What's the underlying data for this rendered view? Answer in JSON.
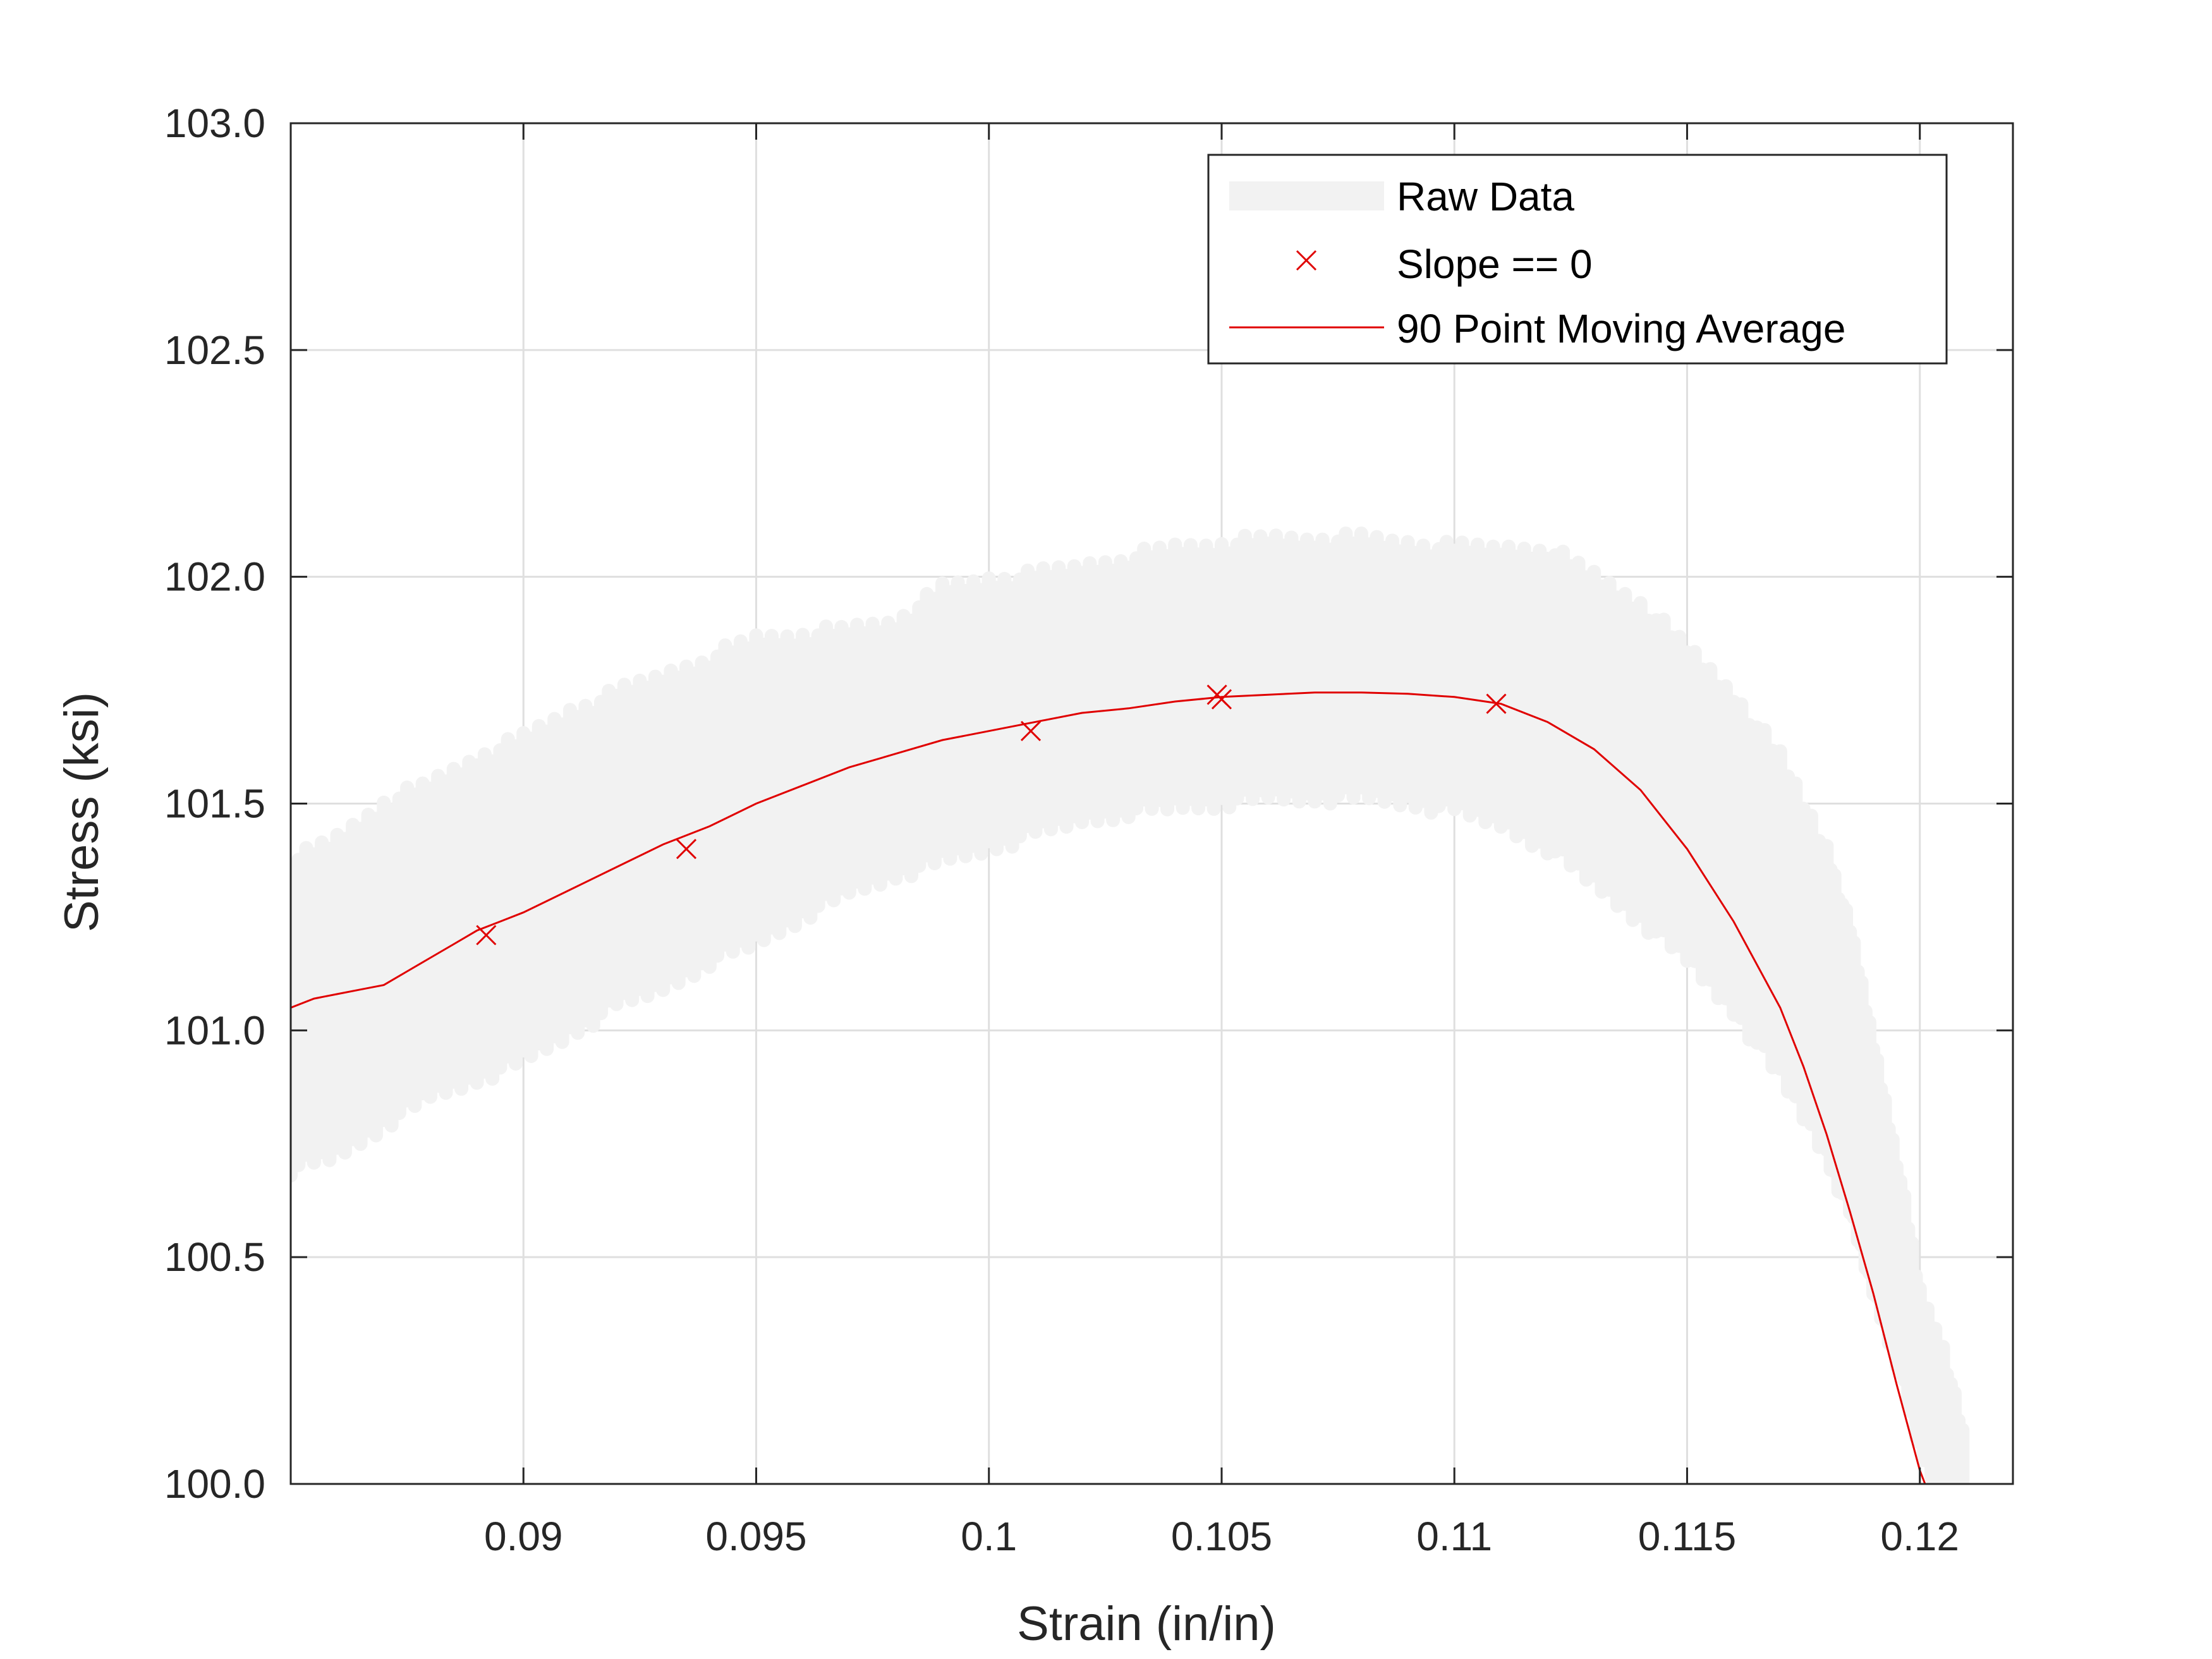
{
  "colors": {
    "raw": "#f2f2f2",
    "line": "#e00000",
    "markers": "#e00000",
    "axes": "#262626",
    "grid": "#dfdfdf"
  },
  "chart_data": {
    "type": "line",
    "xlabel": "Strain (in/in)",
    "ylabel": "Stress (ksi)",
    "xlim": [
      0.085,
      0.122
    ],
    "ylim": [
      100.0,
      103.0
    ],
    "grid": true,
    "legend_position": "top-right",
    "x_tick_labels": [
      "0.09",
      "0.095",
      "0.1",
      "0.105",
      "0.11",
      "0.115",
      "0.12"
    ],
    "y_tick_labels": [
      "100.0",
      "100.5",
      "101.0",
      "101.5",
      "102.0",
      "102.5",
      "103.0"
    ],
    "legend": [
      "Raw Data",
      "Slope == 0",
      "90 Point Moving Average"
    ],
    "series": [
      {
        "name": "Raw Data",
        "style": "thick light band",
        "x": [
          0.085,
          0.086,
          0.087,
          0.088,
          0.089,
          0.09,
          0.091,
          0.092,
          0.093,
          0.094,
          0.095,
          0.096,
          0.097,
          0.098,
          0.099,
          0.1,
          0.101,
          0.102,
          0.103,
          0.104,
          0.105,
          0.106,
          0.107,
          0.108,
          0.109,
          0.11,
          0.111,
          0.112,
          0.113,
          0.114,
          0.115,
          0.116,
          0.117,
          0.118,
          0.1185,
          0.119,
          0.1195,
          0.12,
          0.1205,
          0.121
        ],
        "y_low": [
          100.72,
          100.75,
          100.82,
          100.88,
          100.92,
          100.96,
          101.02,
          101.08,
          101.12,
          101.18,
          101.22,
          101.28,
          101.33,
          101.37,
          101.4,
          101.43,
          101.46,
          101.49,
          101.51,
          101.52,
          101.53,
          101.54,
          101.54,
          101.54,
          101.53,
          101.51,
          101.48,
          101.43,
          101.35,
          101.27,
          101.18,
          101.07,
          100.92,
          100.75,
          100.62,
          100.45,
          100.3,
          100.1,
          100.0,
          100.0
        ],
        "y_high": [
          101.35,
          101.4,
          101.48,
          101.52,
          101.58,
          101.62,
          101.68,
          101.72,
          101.76,
          101.8,
          101.84,
          101.85,
          101.86,
          101.88,
          101.95,
          101.97,
          101.98,
          102.0,
          102.02,
          102.04,
          102.05,
          102.06,
          102.06,
          102.06,
          102.05,
          102.04,
          102.04,
          102.04,
          101.98,
          101.92,
          101.82,
          101.72,
          101.58,
          101.38,
          101.2,
          100.95,
          100.7,
          100.4,
          100.28,
          100.05
        ]
      },
      {
        "name": "90 Point Moving Average",
        "x": [
          0.085,
          0.0855,
          0.086,
          0.0865,
          0.087,
          0.0875,
          0.088,
          0.0885,
          0.089,
          0.0895,
          0.09,
          0.091,
          0.092,
          0.093,
          0.094,
          0.095,
          0.096,
          0.097,
          0.098,
          0.099,
          0.1,
          0.101,
          0.102,
          0.103,
          0.104,
          0.105,
          0.106,
          0.107,
          0.108,
          0.109,
          0.11,
          0.111,
          0.112,
          0.113,
          0.114,
          0.115,
          0.116,
          0.117,
          0.1175,
          0.118,
          0.1185,
          0.119,
          0.1195,
          0.12,
          0.1203,
          0.1205,
          0.1207
        ],
        "y": [
          101.05,
          101.07,
          101.08,
          101.09,
          101.1,
          101.13,
          101.16,
          101.19,
          101.22,
          101.24,
          101.26,
          101.31,
          101.36,
          101.41,
          101.45,
          101.5,
          101.54,
          101.58,
          101.61,
          101.64,
          101.66,
          101.68,
          101.7,
          101.71,
          101.725,
          101.735,
          101.74,
          101.745,
          101.745,
          101.742,
          101.735,
          101.72,
          101.68,
          101.62,
          101.53,
          101.4,
          101.24,
          101.05,
          100.92,
          100.77,
          100.6,
          100.42,
          100.22,
          100.03,
          99.95,
          99.9,
          99.85
        ]
      },
      {
        "name": "Slope == 0",
        "marker": "x",
        "x": [
          0.0892,
          0.0935,
          0.1009,
          0.1049,
          0.105,
          0.1109
        ],
        "y": [
          101.21,
          101.4,
          101.66,
          101.74,
          101.73,
          101.72
        ]
      }
    ]
  }
}
